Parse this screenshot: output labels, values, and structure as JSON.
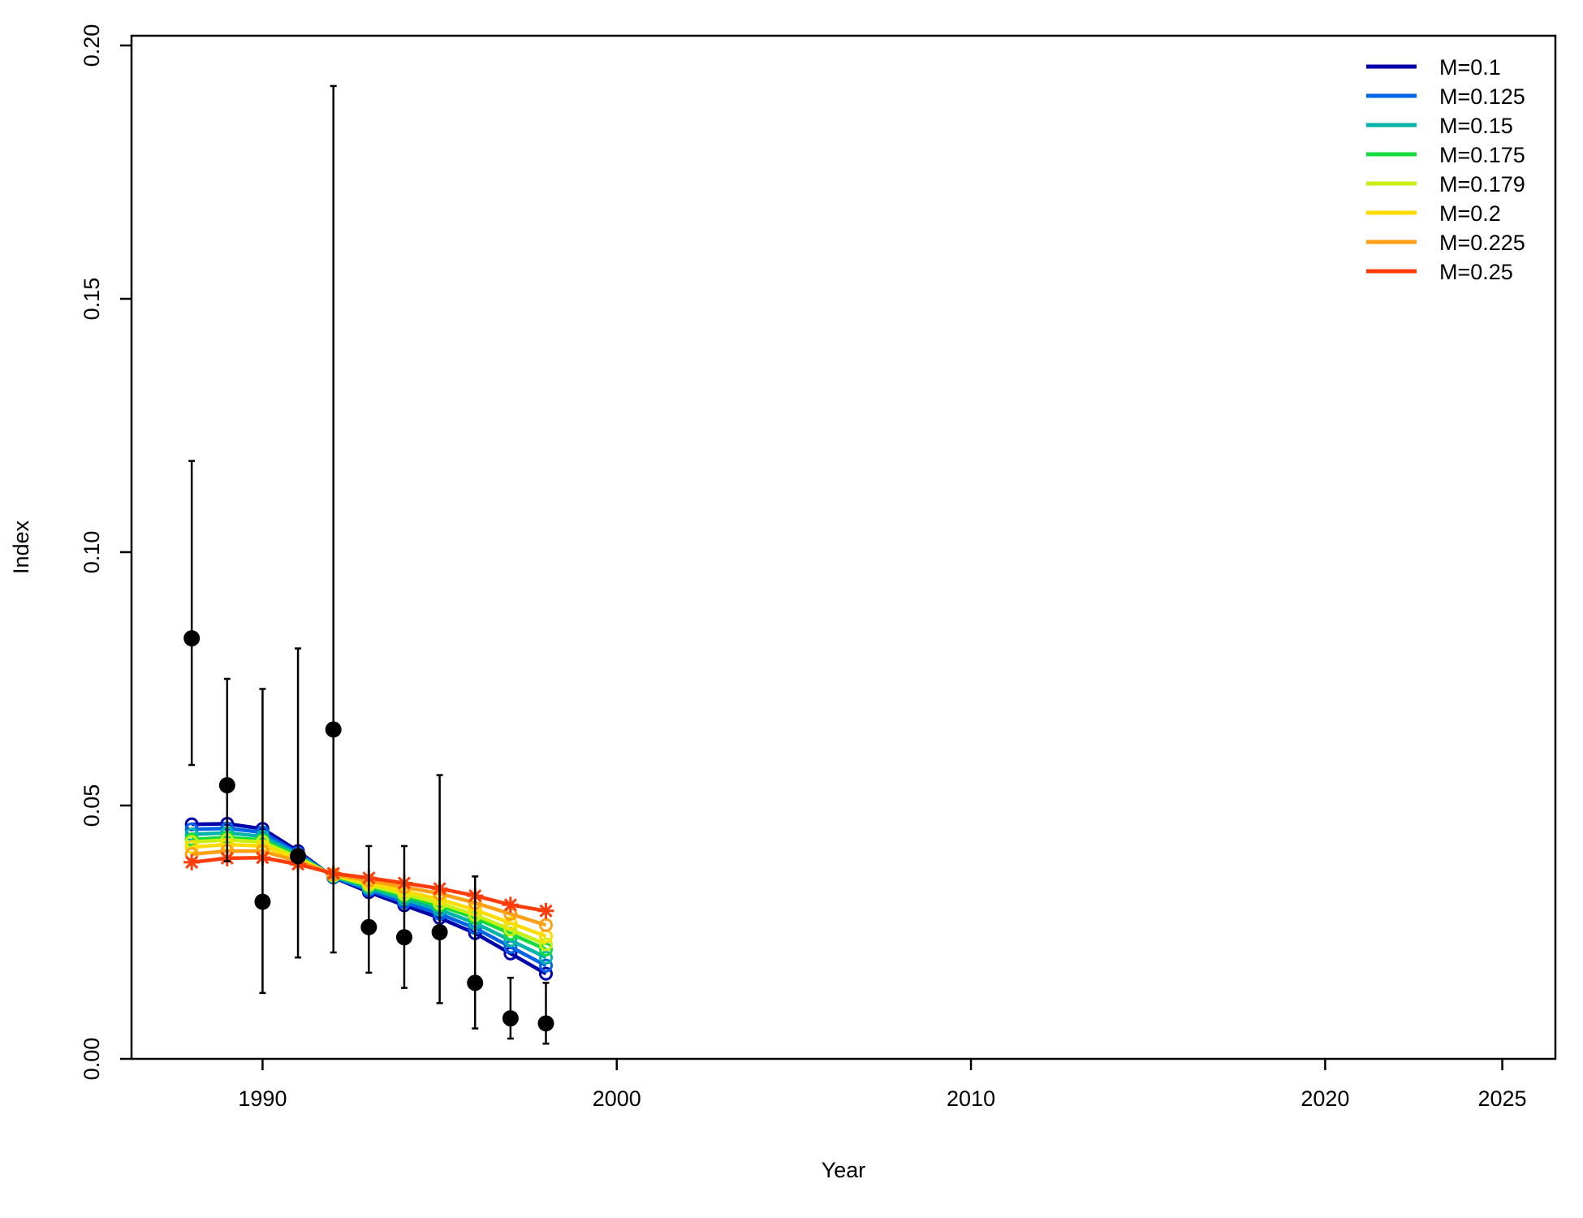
{
  "chart_data": {
    "type": "line",
    "xlabel": "Year",
    "ylabel": "Index",
    "xlim": [
      1986.3,
      2026.5
    ],
    "ylim": [
      0,
      0.2
    ],
    "x_ticks": [
      1990,
      2000,
      2010,
      2020,
      2025
    ],
    "y_ticks": [
      0.0,
      0.05,
      0.1,
      0.15,
      0.2
    ],
    "x_tick_labels": [
      "1990",
      "2000",
      "2010",
      "2020",
      "2025"
    ],
    "y_tick_labels": [
      "0.00",
      "0.05",
      "0.10",
      "0.15",
      "0.20"
    ],
    "grid": false,
    "legend_position": "top-right",
    "x": [
      1988,
      1989,
      1990,
      1991,
      1992,
      1993,
      1994,
      1995,
      1996,
      1997,
      1998
    ],
    "observed": {
      "values": [
        0.083,
        0.054,
        0.031,
        0.04,
        0.065,
        0.026,
        0.024,
        0.025,
        0.015,
        0.008,
        0.007
      ],
      "lower": [
        0.058,
        0.039,
        0.013,
        0.02,
        0.021,
        0.017,
        0.014,
        0.011,
        0.006,
        0.004,
        0.003
      ],
      "upper": [
        0.118,
        0.075,
        0.073,
        0.081,
        0.192,
        0.042,
        0.042,
        0.056,
        0.036,
        0.016,
        0.015
      ],
      "color": "#000000"
    },
    "series": [
      {
        "name": "M=0.1",
        "color": "#0000AA",
        "values": [
          0.0463,
          0.0464,
          0.0454,
          0.041,
          0.0358,
          0.0329,
          0.0303,
          0.0278,
          0.0248,
          0.0208,
          0.0168
        ]
      },
      {
        "name": "M=0.125",
        "color": "#0064E6",
        "values": [
          0.0453,
          0.0455,
          0.0447,
          0.0406,
          0.0359,
          0.0333,
          0.0309,
          0.0286,
          0.0258,
          0.0221,
          0.0184
        ]
      },
      {
        "name": "M=0.15",
        "color": "#00B4AA",
        "values": [
          0.0443,
          0.0446,
          0.0439,
          0.0403,
          0.036,
          0.0337,
          0.0315,
          0.0294,
          0.0268,
          0.0234,
          0.02
        ]
      },
      {
        "name": "M=0.175",
        "color": "#14DC3C",
        "values": [
          0.0433,
          0.0437,
          0.0432,
          0.0399,
          0.0361,
          0.0341,
          0.0321,
          0.0302,
          0.0278,
          0.0247,
          0.0216
        ]
      },
      {
        "name": "M=0.179",
        "color": "#C8F014",
        "values": [
          0.0428,
          0.0432,
          0.0428,
          0.0397,
          0.0362,
          0.0343,
          0.0325,
          0.0307,
          0.0284,
          0.0255,
          0.0226
        ]
      },
      {
        "name": "M=0.2",
        "color": "#FFDC00",
        "values": [
          0.0418,
          0.0423,
          0.042,
          0.0394,
          0.0363,
          0.0347,
          0.0331,
          0.0315,
          0.0294,
          0.0268,
          0.0242
        ]
      },
      {
        "name": "M=0.225",
        "color": "#FFA014",
        "values": [
          0.0404,
          0.041,
          0.041,
          0.039,
          0.0364,
          0.0352,
          0.0339,
          0.0326,
          0.0308,
          0.0286,
          0.0264
        ]
      },
      {
        "name": "M=0.25",
        "color": "#FF3C0A",
        "values": [
          0.0388,
          0.0396,
          0.0397,
          0.0384,
          0.0366,
          0.0357,
          0.0347,
          0.0336,
          0.0322,
          0.0304,
          0.0292
        ]
      }
    ]
  }
}
